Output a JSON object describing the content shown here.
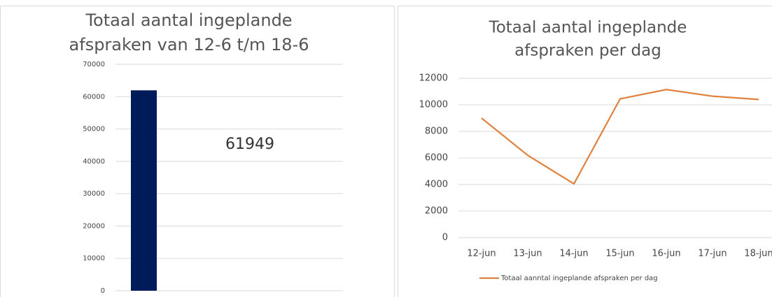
{
  "chart_data": [
    {
      "type": "bar",
      "title": [
        "Totaal aantal ingeplande",
        "afspraken van 12-6 t/m 18-6"
      ],
      "categories": [
        null
      ],
      "values": [
        61949
      ],
      "color": "#001b5a",
      "annotation": "61949",
      "ylim": [
        0,
        70000
      ],
      "yticks": [
        0,
        10000,
        20000,
        30000,
        40000,
        50000,
        60000,
        70000
      ],
      "grid": true
    },
    {
      "type": "line",
      "title": [
        "Totaal aantal ingeplande",
        "afspraken per dag"
      ],
      "categories": [
        "12-jun",
        "13-jun",
        "14-jun",
        "15-jun",
        "16-jun",
        "17-jun",
        "18-jun"
      ],
      "series": [
        {
          "name": "Totaal aanntal ingeplande afspraken per dag",
          "color": "#e0823d",
          "values": [
            9000,
            6200,
            4050,
            10450,
            11150,
            10650,
            10400
          ]
        }
      ],
      "ylim": [
        0,
        12000
      ],
      "yticks": [
        0,
        2000,
        4000,
        6000,
        8000,
        10000,
        12000
      ],
      "grid": true,
      "legend": "bottom"
    }
  ]
}
